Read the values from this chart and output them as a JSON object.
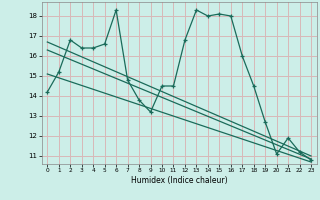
{
  "xlabel": "Humidex (Indice chaleur)",
  "bg_color": "#cceee8",
  "grid_color": "#d8b8b8",
  "line_color": "#1a6b5a",
  "xlim": [
    -0.5,
    23.5
  ],
  "ylim": [
    10.6,
    18.7
  ],
  "xticks": [
    0,
    1,
    2,
    3,
    4,
    5,
    6,
    7,
    8,
    9,
    10,
    11,
    12,
    13,
    14,
    15,
    16,
    17,
    18,
    19,
    20,
    21,
    22,
    23
  ],
  "yticks": [
    11,
    12,
    13,
    14,
    15,
    16,
    17,
    18
  ],
  "series1_x": [
    0,
    1,
    2,
    3,
    4,
    5,
    6,
    7,
    8,
    9,
    10,
    11,
    12,
    13,
    14,
    15,
    16,
    17,
    18,
    19,
    20,
    21,
    22,
    23
  ],
  "series1_y": [
    14.2,
    15.2,
    16.8,
    16.4,
    16.4,
    16.6,
    18.3,
    14.8,
    13.8,
    13.2,
    14.5,
    14.5,
    16.8,
    18.3,
    18.0,
    18.1,
    18.0,
    16.0,
    14.5,
    12.7,
    11.1,
    11.9,
    11.2,
    10.8
  ],
  "trend1_x": [
    0,
    23
  ],
  "trend1_y": [
    16.7,
    11.0
  ],
  "trend2_x": [
    0,
    23
  ],
  "trend2_y": [
    16.3,
    10.85
  ],
  "trend3_x": [
    0,
    23
  ],
  "trend3_y": [
    15.1,
    10.7
  ]
}
